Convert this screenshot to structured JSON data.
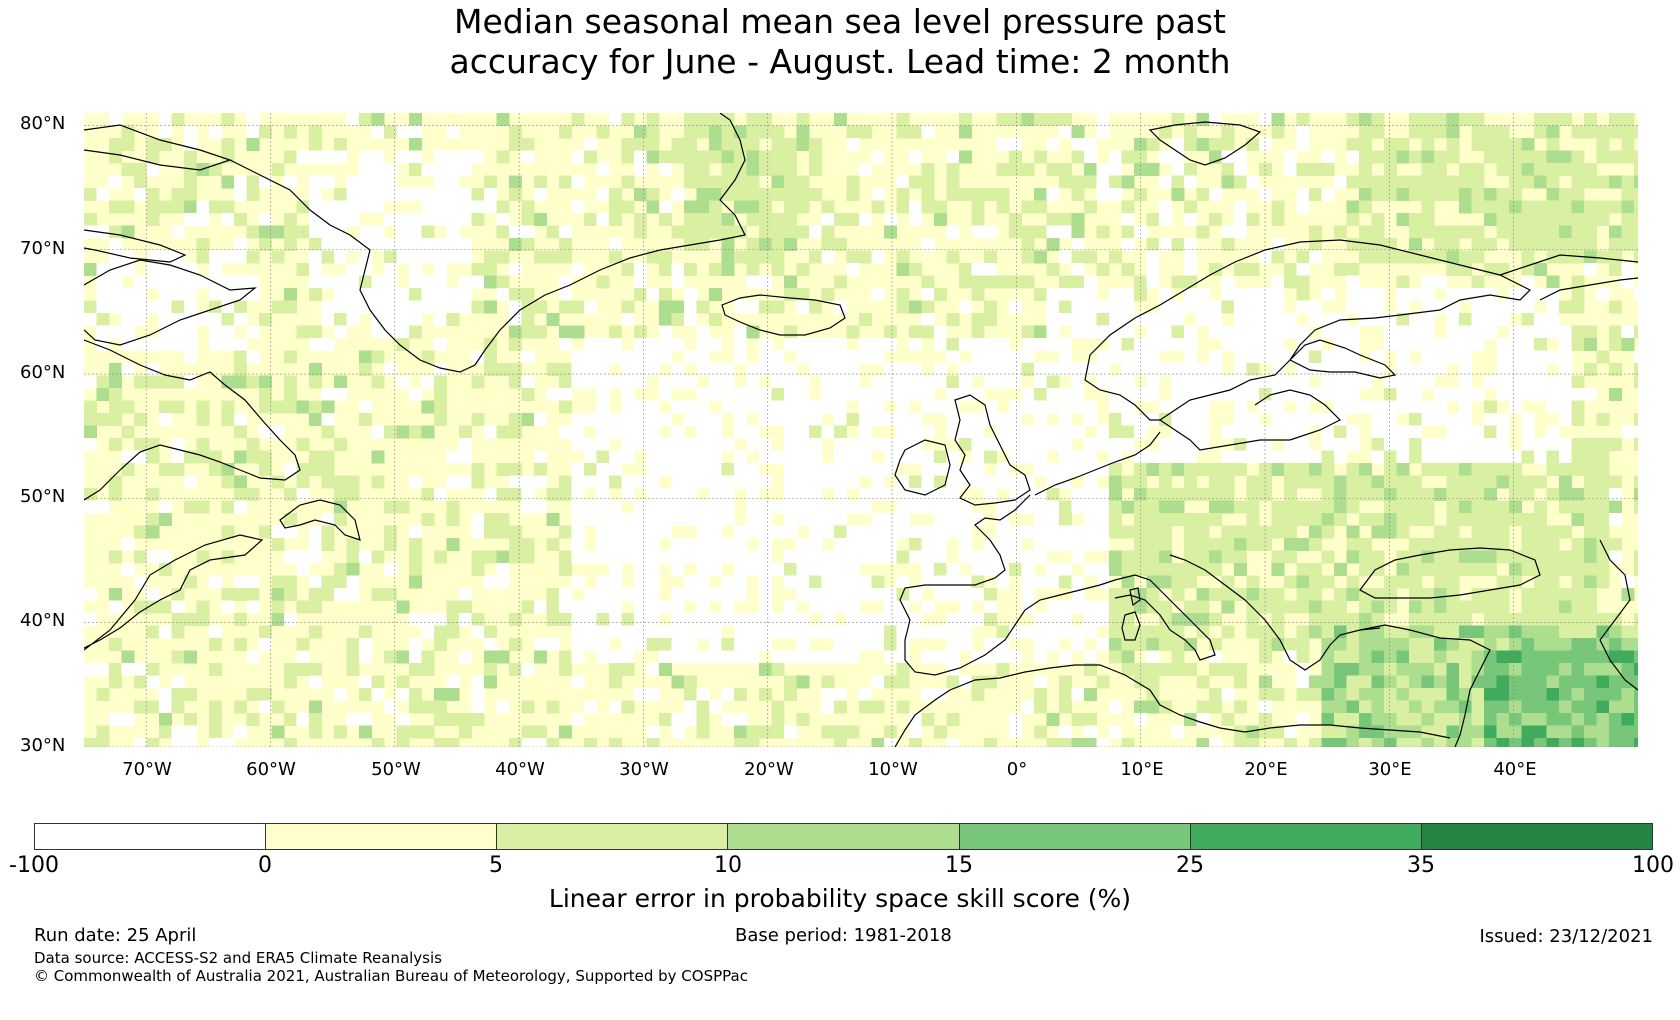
{
  "title_line1": "Median seasonal mean sea level pressure past",
  "title_line2": "accuracy for June - August. Lead time: 2 month",
  "lat_labels": [
    "80°N",
    "70°N",
    "60°N",
    "50°N",
    "40°N",
    "30°N"
  ],
  "lat_values": [
    80,
    70,
    60,
    50,
    40,
    30
  ],
  "lon_labels": [
    "70°W",
    "60°W",
    "50°W",
    "40°W",
    "30°W",
    "20°W",
    "10°W",
    "0°",
    "10°E",
    "20°E",
    "30°E",
    "40°E"
  ],
  "lon_values": [
    -70,
    -60,
    -50,
    -40,
    -30,
    -20,
    -10,
    0,
    10,
    20,
    30,
    40
  ],
  "map_extent": {
    "lon_min": -75,
    "lon_max": 50,
    "lat_min": 30,
    "lat_max": 81
  },
  "colorbar": {
    "label": "Linear error in probability space skill score (%)",
    "ticks": [
      "-100",
      "0",
      "5",
      "10",
      "15",
      "25",
      "35",
      "100"
    ],
    "bins": [
      {
        "range": "-100 to 0",
        "color": "#ffffff"
      },
      {
        "range": "0 to 5",
        "color": "#ffffcc"
      },
      {
        "range": "5 to 10",
        "color": "#d9f0a3"
      },
      {
        "range": "10 to 15",
        "color": "#addd8e"
      },
      {
        "range": "15 to 25",
        "color": "#78c679"
      },
      {
        "range": "25 to 35",
        "color": "#41ab5d"
      },
      {
        "range": "35 to 100",
        "color": "#238443"
      }
    ]
  },
  "footer": {
    "run_date": "Run date: 25 April",
    "base_period": "Base period: 1981-2018",
    "issued": "Issued: 23/12/2021",
    "data_source": "Data source: ACCESS-S2 and ERA5 Climate Reanalysis",
    "copyright": "© Commonwealth of Australia 2021, Australian Bureau of Meteorology, Supported by COSPPac"
  },
  "skill_regions": [
    {
      "name": "atlantic-basin",
      "category": "-100 to 0"
    },
    {
      "name": "north-sea-europe",
      "category": "-100 to 0"
    },
    {
      "name": "greenland-interior",
      "category": "-100 to 0"
    },
    {
      "name": "eastern-mediterranean",
      "category": "15 to 25"
    },
    {
      "name": "middle-east",
      "category": "15 to 25"
    },
    {
      "name": "western-europe-mixed",
      "category": "5 to 10"
    },
    {
      "name": "arctic-ocean",
      "category": "5 to 10"
    }
  ]
}
